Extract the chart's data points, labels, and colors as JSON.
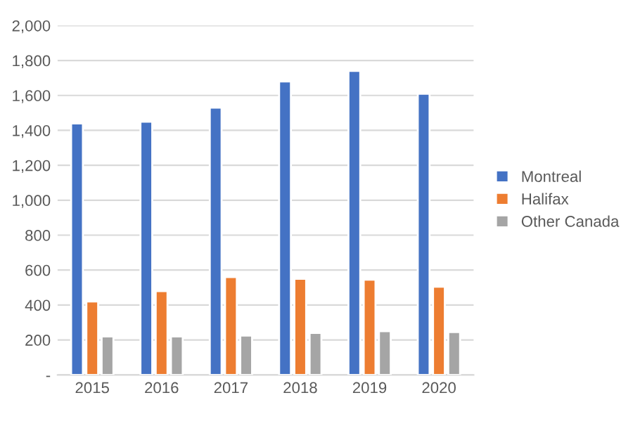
{
  "chart_data": {
    "type": "bar",
    "categories": [
      "2015",
      "2016",
      "2017",
      "2018",
      "2019",
      "2020"
    ],
    "series": [
      {
        "name": "Montreal",
        "color": "#4472c4",
        "values": [
          1440,
          1450,
          1530,
          1680,
          1740,
          1610
        ]
      },
      {
        "name": "Halifax",
        "color": "#ed7d31",
        "values": [
          420,
          480,
          560,
          550,
          545,
          505
        ]
      },
      {
        "name": "Other Canada",
        "color": "#a5a5a5",
        "values": [
          220,
          220,
          225,
          240,
          250,
          245
        ]
      }
    ],
    "ylim": [
      0,
      2000
    ],
    "yticks": [
      {
        "value": 0,
        "label": "-"
      },
      {
        "value": 200,
        "label": "200"
      },
      {
        "value": 400,
        "label": "400"
      },
      {
        "value": 600,
        "label": "600"
      },
      {
        "value": 800,
        "label": "800"
      },
      {
        "value": 1000,
        "label": "1,000"
      },
      {
        "value": 1200,
        "label": "1,200"
      },
      {
        "value": 1400,
        "label": "1,400"
      },
      {
        "value": 1600,
        "label": "1,600"
      },
      {
        "value": 1800,
        "label": "1,800"
      },
      {
        "value": 2000,
        "label": "2,000"
      }
    ],
    "grid": "y",
    "legend": "right"
  }
}
